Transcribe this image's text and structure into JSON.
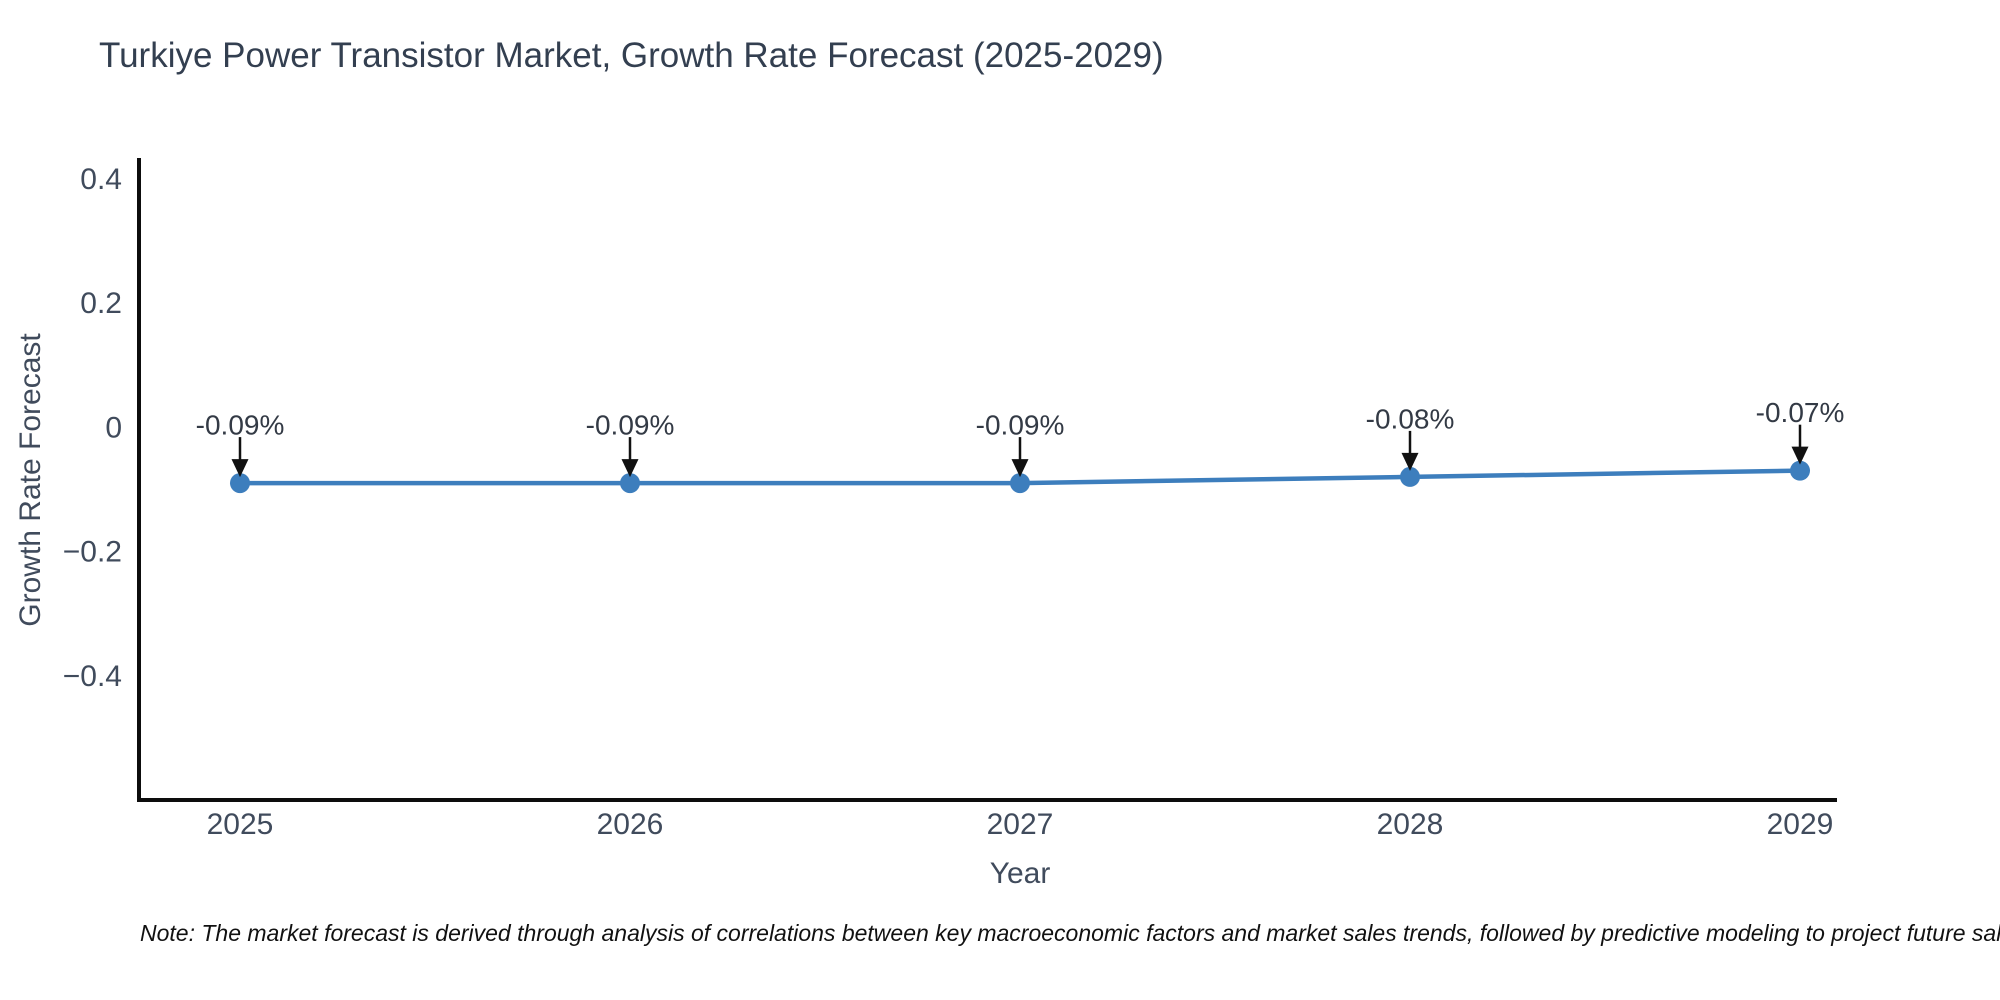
{
  "chart_data": {
    "type": "line",
    "title": "Turkiye Power Transistor Market, Growth Rate Forecast (2025-2029)",
    "xlabel": "Year",
    "ylabel": "Growth Rate Forecast",
    "categories": [
      "2025",
      "2026",
      "2027",
      "2028",
      "2029"
    ],
    "values": [
      -0.09,
      -0.09,
      -0.09,
      -0.08,
      -0.07
    ],
    "point_labels": [
      "-0.09%",
      "-0.09%",
      "-0.09%",
      "-0.08%",
      "-0.07%"
    ],
    "ytick_values": [
      0.4,
      0.2,
      0,
      -0.2,
      -0.4
    ],
    "ytick_labels": [
      "0.4",
      "0.2",
      "0",
      "−0.2",
      "−0.4"
    ],
    "ylim": [
      -0.6,
      0.43
    ],
    "grid": false,
    "legend": "none",
    "line_color": "#3d7ebd",
    "marker_color": "#3d7ebd",
    "arrow_color": "#111111",
    "annotation_text_color": "#333a45"
  },
  "note": "Note: The market forecast is derived through analysis of correlations between key macroeconomic factors and market sales trends, followed by predictive modeling to project future sal",
  "colors": {
    "title_text": "#333f50",
    "tick_text": "#404b5c",
    "axis_spine": "#0d0d0d",
    "background": "#ffffff"
  }
}
